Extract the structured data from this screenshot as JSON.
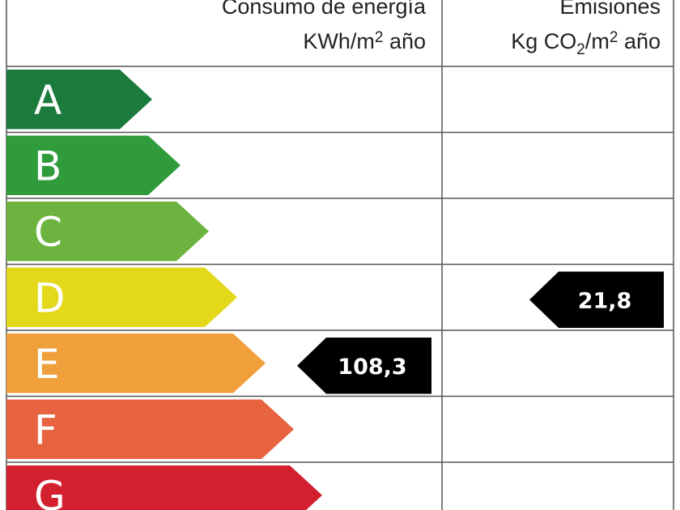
{
  "header": {
    "consumo": {
      "title": "Consumo de energía",
      "units": [
        "KWh/m",
        "2",
        " año"
      ]
    },
    "emisiones": {
      "title": "Emisiones",
      "units": [
        "Kg CO",
        "2",
        "/m",
        "2",
        " año"
      ]
    }
  },
  "ratings": [
    {
      "letter": "A",
      "color": "#1b7b3d"
    },
    {
      "letter": "B",
      "color": "#2f9b3b"
    },
    {
      "letter": "C",
      "color": "#6db33f"
    },
    {
      "letter": "D",
      "color": "#e3d81a"
    },
    {
      "letter": "E",
      "color": "#f0a03b"
    },
    {
      "letter": "F",
      "color": "#e8633f"
    },
    {
      "letter": "G",
      "color": "#d2202f"
    }
  ],
  "consumo": {
    "rating": "E",
    "value": "108,3"
  },
  "emisiones": {
    "rating": "D",
    "value": "21,8"
  }
}
